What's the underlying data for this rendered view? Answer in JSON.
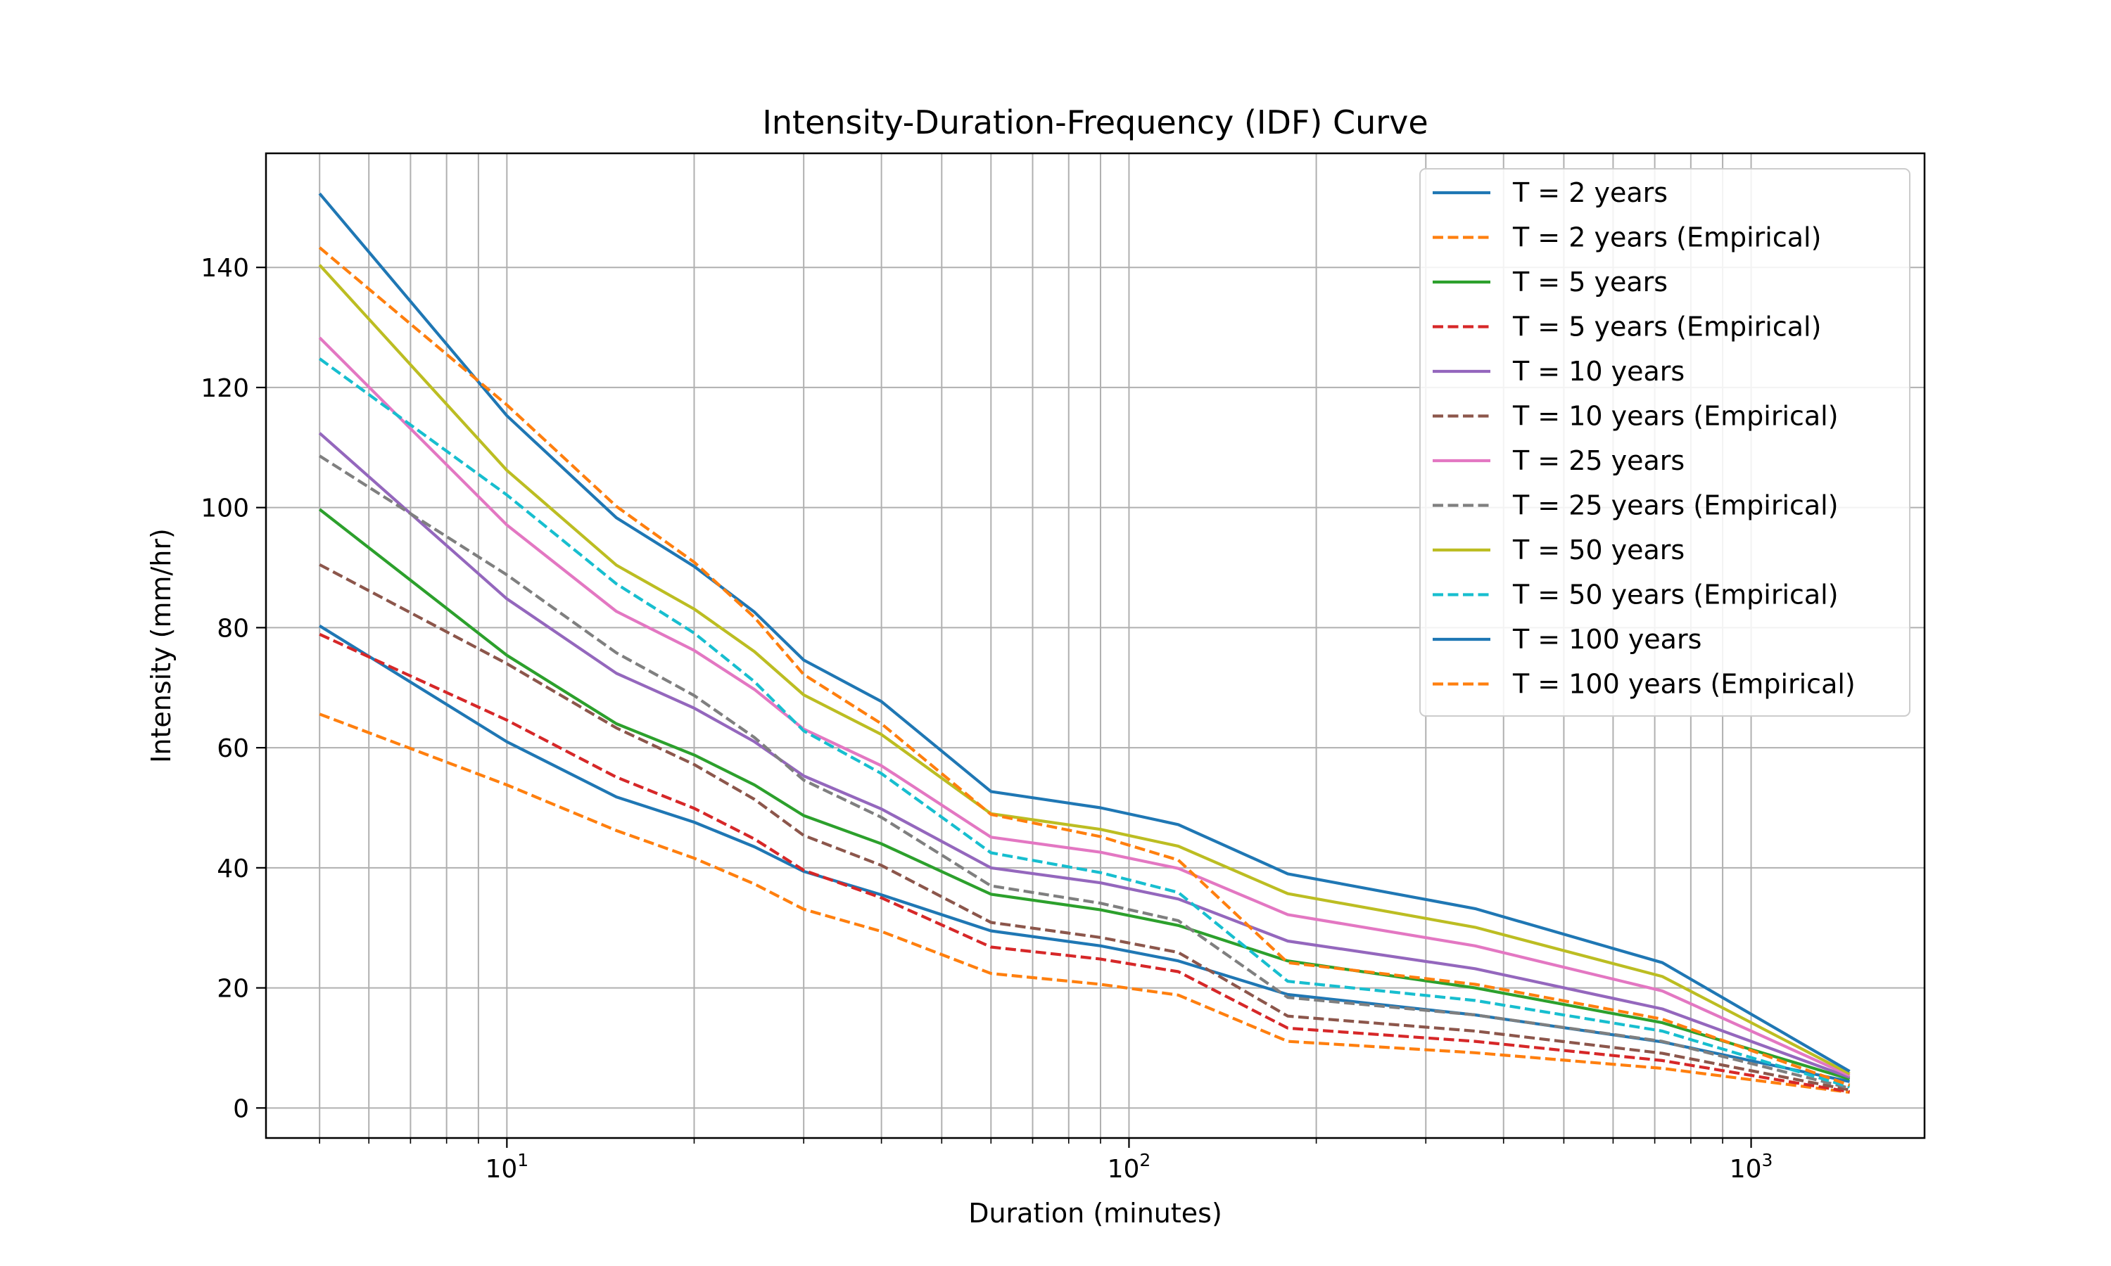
{
  "chart_data": {
    "type": "line",
    "title": "Intensity-Duration-Frequency (IDF) Curve",
    "xlabel": "Duration (minutes)",
    "ylabel": "Intensity (mm/hr)",
    "xscale": "log",
    "xlim": [
      4.1,
      1900
    ],
    "ylim": [
      -5,
      159
    ],
    "grid": "both (major and minor)",
    "legend_position": "top-right",
    "x_ticks": [
      10,
      100,
      1000
    ],
    "x_tick_labels": [
      {
        "base": "10",
        "exp": "1"
      },
      {
        "base": "10",
        "exp": "2"
      },
      {
        "base": "10",
        "exp": "3"
      }
    ],
    "y_ticks": [
      0,
      20,
      40,
      60,
      80,
      100,
      120,
      140
    ],
    "y_tick_labels": [
      "0",
      "20",
      "40",
      "60",
      "80",
      "100",
      "120",
      "140"
    ],
    "x": [
      5,
      10,
      15,
      20,
      25,
      30,
      40,
      60,
      90,
      120,
      180,
      360,
      720,
      1440
    ],
    "series": [
      {
        "name": "T = 2 years",
        "style": "solid",
        "color": "#1f77b4",
        "values": [
          80.3,
          61.0,
          51.8,
          47.6,
          43.5,
          39.4,
          35.5,
          29.5,
          27.0,
          24.5,
          18.9,
          15.5,
          11.0,
          4.4
        ]
      },
      {
        "name": "T = 2 years (Empirical)",
        "style": "dashed",
        "color": "#ff7f0e",
        "values": [
          65.6,
          53.8,
          46.2,
          41.6,
          37.3,
          33.1,
          29.4,
          22.4,
          20.6,
          18.8,
          11.1,
          9.2,
          6.6,
          2.6
        ]
      },
      {
        "name": "T = 5 years",
        "style": "solid",
        "color": "#2ca02c",
        "values": [
          99.7,
          75.4,
          64.0,
          58.8,
          53.8,
          48.7,
          44.0,
          35.6,
          33.0,
          30.4,
          24.5,
          20.0,
          14.2,
          4.8
        ]
      },
      {
        "name": "T = 5 years (Empirical)",
        "style": "dashed",
        "color": "#d62728",
        "values": [
          78.9,
          64.6,
          55.1,
          49.9,
          44.8,
          39.6,
          35.0,
          26.8,
          24.8,
          22.7,
          13.3,
          11.1,
          7.9,
          2.7
        ]
      },
      {
        "name": "T = 10 years",
        "style": "solid",
        "color": "#9467bd",
        "values": [
          112.4,
          84.8,
          72.4,
          66.6,
          61.0,
          55.3,
          49.8,
          40.0,
          37.5,
          34.8,
          27.8,
          23.2,
          16.5,
          5.1
        ]
      },
      {
        "name": "T = 10 years (Empirical)",
        "style": "dashed",
        "color": "#8c564b",
        "values": [
          90.5,
          74.0,
          63.3,
          57.2,
          51.4,
          45.4,
          40.4,
          30.9,
          28.4,
          25.9,
          15.3,
          12.8,
          9.1,
          3.0
        ]
      },
      {
        "name": "T = 25 years",
        "style": "solid",
        "color": "#e377c2",
        "values": [
          128.3,
          97.1,
          82.7,
          76.2,
          69.7,
          63.1,
          57.0,
          45.1,
          42.6,
          39.9,
          32.2,
          27.0,
          19.5,
          5.4
        ]
      },
      {
        "name": "T = 25 years (Empirical)",
        "style": "dashed",
        "color": "#7f7f7f",
        "values": [
          108.6,
          88.8,
          75.8,
          68.7,
          61.7,
          54.6,
          48.4,
          37.0,
          34.1,
          31.2,
          18.4,
          15.5,
          11.1,
          3.3
        ]
      },
      {
        "name": "T = 50 years",
        "style": "solid",
        "color": "#bcbd22",
        "values": [
          140.4,
          106.2,
          90.4,
          83.1,
          76.0,
          68.8,
          62.2,
          49.0,
          46.4,
          43.6,
          35.7,
          30.1,
          21.9,
          5.7
        ]
      },
      {
        "name": "T = 50 years (Empirical)",
        "style": "dashed",
        "color": "#17becf",
        "values": [
          124.8,
          102.1,
          87.3,
          79.1,
          71.0,
          62.8,
          55.7,
          42.5,
          39.2,
          35.9,
          21.1,
          17.9,
          12.8,
          3.5
        ]
      },
      {
        "name": "T = 100 years",
        "style": "solid",
        "color": "#1f77b4",
        "values": [
          152.3,
          115.3,
          98.3,
          90.2,
          82.6,
          74.6,
          67.7,
          52.7,
          50.0,
          47.2,
          39.0,
          33.2,
          24.2,
          6.1
        ]
      },
      {
        "name": "T = 100 years (Empirical)",
        "style": "dashed",
        "color": "#ff7f0e",
        "values": [
          143.3,
          117.1,
          100.2,
          90.9,
          81.7,
          72.2,
          64.0,
          48.9,
          45.2,
          41.3,
          24.2,
          20.6,
          14.8,
          3.8
        ]
      }
    ]
  }
}
